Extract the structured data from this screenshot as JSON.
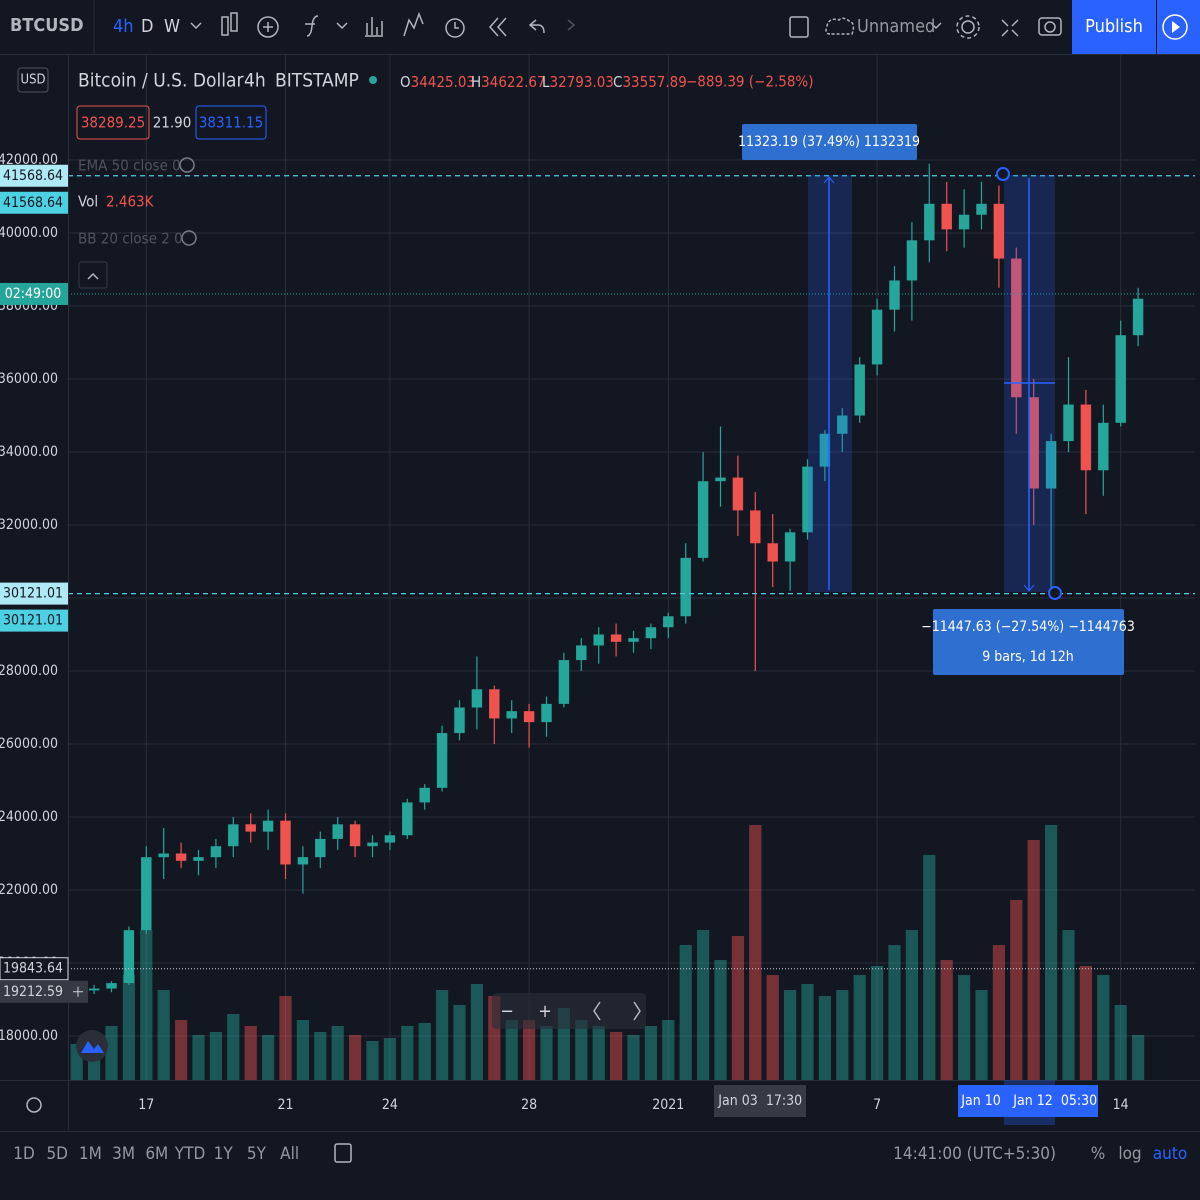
{
  "toolbar": {
    "symbol": "BTCUSD",
    "intervals": [
      "4h",
      "D",
      "W"
    ],
    "layout": "Unnamed",
    "publish": "Publish"
  },
  "currency": "USD",
  "legend": {
    "title": "Bitcoin / U.S. Dollar",
    "interval": "4h",
    "exchange": "BITSTAMP",
    "ohlc": [
      [
        "O",
        "34425.03"
      ],
      [
        "H",
        "34622.67"
      ],
      [
        "L",
        "32793.03"
      ],
      [
        "C",
        "33557.89"
      ]
    ],
    "change": "−889.39 (−2.58%)",
    "bid": "38289.25",
    "spread": "21.90",
    "ask": "38311.15",
    "ema": "EMA 50 close 0",
    "vol_label": "Vol",
    "vol_value": "2.463K",
    "bb": "BB 20 close 2 0"
  },
  "chart_data": {
    "type": "candlestick",
    "categories": [
      null,
      null,
      null,
      null,
      "17",
      null,
      null,
      null,
      null,
      null,
      null,
      null,
      "21",
      null,
      null,
      null,
      null,
      null,
      "24",
      null,
      null,
      null,
      null,
      null,
      null,
      null,
      "28",
      null,
      null,
      null,
      null,
      null,
      null,
      null,
      "2021",
      null,
      null,
      null,
      null,
      null,
      null,
      null,
      null,
      null,
      null,
      null,
      "7",
      null,
      null,
      null,
      null,
      null,
      null,
      null,
      null,
      null,
      null,
      null,
      null,
      null,
      "14",
      null
    ],
    "open": [
      19100,
      19250,
      19300,
      19450,
      20900,
      22900,
      23000,
      22800,
      22900,
      23200,
      23800,
      23600,
      23900,
      22700,
      22900,
      23400,
      23800,
      23200,
      23300,
      23500,
      24400,
      24800,
      26300,
      27000,
      27500,
      26700,
      26900,
      26600,
      27100,
      28300,
      28700,
      29000,
      28800,
      28900,
      29200,
      29500,
      31100,
      33200,
      33300,
      32400,
      31500,
      31000,
      31800,
      33600,
      34500,
      35000,
      36400,
      37900,
      38700,
      39800,
      40800,
      40100,
      40500,
      40800,
      39300,
      35500,
      33000,
      34300,
      35300,
      33500,
      34800,
      37200
    ],
    "high": [
      19300,
      19400,
      19500,
      21000,
      23200,
      23700,
      23300,
      23100,
      23400,
      24000,
      24100,
      24200,
      24100,
      23200,
      23600,
      24000,
      23900,
      23500,
      23600,
      24500,
      24900,
      26500,
      27200,
      28400,
      27600,
      27200,
      27100,
      27300,
      28500,
      28900,
      29200,
      29300,
      29100,
      29300,
      29600,
      31500,
      34000,
      34700,
      33900,
      32900,
      32300,
      31900,
      33800,
      34600,
      35200,
      36600,
      38200,
      39100,
      40300,
      41900,
      41400,
      41200,
      41400,
      41300,
      39600,
      36000,
      34500,
      36600,
      35700,
      35300,
      37600,
      38500
    ],
    "low": [
      19050,
      19150,
      19200,
      19400,
      20800,
      22300,
      22600,
      22400,
      22600,
      22900,
      23300,
      23100,
      22300,
      21900,
      22600,
      23100,
      22900,
      22900,
      23100,
      23400,
      24200,
      24700,
      26100,
      26400,
      26000,
      26300,
      25900,
      26200,
      27000,
      28000,
      28200,
      28400,
      28500,
      28600,
      28900,
      29300,
      31000,
      32500,
      31700,
      28000,
      30300,
      30200,
      31600,
      33200,
      34000,
      34800,
      36100,
      37300,
      37600,
      39200,
      39500,
      39600,
      40100,
      38500,
      34500,
      32000,
      30200,
      34000,
      32300,
      32800,
      34700,
      36900
    ],
    "close": [
      19250,
      19300,
      19450,
      20900,
      22900,
      23000,
      22800,
      22900,
      23200,
      23800,
      23600,
      23900,
      22700,
      22900,
      23400,
      23800,
      23200,
      23300,
      23500,
      24400,
      24800,
      26300,
      27000,
      27500,
      26700,
      26900,
      26600,
      27100,
      28300,
      28700,
      29000,
      28800,
      28900,
      29200,
      29500,
      31100,
      33200,
      33300,
      32400,
      31500,
      31000,
      31800,
      33600,
      34500,
      35000,
      36400,
      37900,
      38700,
      39800,
      40800,
      40100,
      40500,
      40800,
      39300,
      35500,
      33000,
      34300,
      35300,
      33500,
      34800,
      37200,
      38200
    ],
    "volume": [
      1.2,
      1.5,
      1.8,
      3.5,
      5.0,
      3.0,
      2.0,
      1.5,
      1.6,
      2.2,
      1.8,
      1.5,
      2.8,
      2.0,
      1.6,
      1.8,
      1.5,
      1.3,
      1.4,
      1.8,
      1.9,
      3.0,
      2.5,
      3.2,
      2.8,
      2.0,
      2.0,
      1.8,
      2.4,
      2.0,
      1.8,
      1.6,
      1.5,
      1.8,
      2.0,
      4.5,
      5.0,
      4.0,
      4.8,
      8.5,
      3.5,
      3.0,
      3.2,
      2.8,
      3.0,
      3.5,
      3.8,
      4.5,
      5.0,
      7.5,
      4.0,
      3.5,
      3.0,
      4.5,
      6.0,
      8.0,
      8.5,
      5.0,
      3.8,
      3.5,
      2.5,
      1.5
    ],
    "up_color": "#26a69a",
    "down_color": "#ef5350",
    "ylim": [
      16795,
      44877
    ],
    "yticks": [
      {
        "value": 18000,
        "label": "18000.00"
      },
      {
        "value": 20000,
        "label": "20000.00"
      },
      {
        "value": 22000,
        "label": "22000.00"
      },
      {
        "value": 24000,
        "label": "24000.00"
      },
      {
        "value": 26000,
        "label": "26000.00"
      },
      {
        "value": 28000,
        "label": "28000.00"
      },
      {
        "value": 30000,
        "label": "30000.00"
      },
      {
        "value": 32000,
        "label": "32000.00"
      },
      {
        "value": 34000,
        "label": "34000.00"
      },
      {
        "value": 36000,
        "label": "36000.00"
      },
      {
        "value": 38000,
        "label": "38000.00"
      },
      {
        "value": 40000,
        "label": "40000.00"
      },
      {
        "value": 42000,
        "label": "42000.00"
      }
    ],
    "grid": true,
    "hlines": [
      41568.64,
      30121.01
    ],
    "last_price": {
      "value": 38330,
      "label": "02:49:00"
    },
    "crosshair": [
      19843.64,
      19212.59
    ]
  },
  "measures": [
    {
      "text": "11323.19 (37.49%) 1132319"
    },
    {
      "text": "−11447.63 (−27.54%) −1144763",
      "sub": "9 bars, 1d 12h"
    }
  ],
  "time_labels": {
    "cross_date": "Jan 03",
    "cross_time": "17:30",
    "range_start": "Jan 10",
    "range_end": "Jan 12",
    "range_time": "05:30"
  },
  "zoom": [
    "−",
    "+"
  ],
  "bottom": {
    "ranges": [
      "1D",
      "5D",
      "1M",
      "3M",
      "6M",
      "YTD",
      "1Y",
      "5Y",
      "All"
    ],
    "clock": "14:41:00 (UTC+5:30)",
    "percent": "%",
    "log": "log",
    "auto": "auto"
  }
}
